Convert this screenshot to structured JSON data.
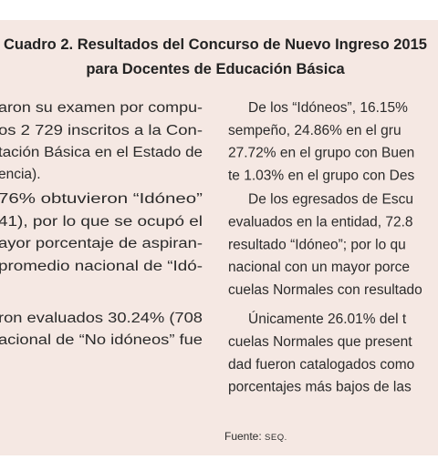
{
  "header": {
    "title_lines": [
      "Cuadro 2. Resultados del Concurso de Nuevo Ingreso 2015",
      "para Docentes de Educación Básica"
    ]
  },
  "left_column": {
    "lines": [
      "aron su examen por compu-",
      "os 2 729 inscritos a la Con-",
      "tación Básica en el Estado de",
      "encia).",
      "76% obtuvieron “Idóneo”",
      "41), por lo que se ocupó el",
      "ayor porcentaje de aspiran-",
      "promedio nacional de “Idó-",
      "ron evaluados 30.24% (708",
      "acional de “No idóneos” fue"
    ]
  },
  "right_column": {
    "paragraphs": [
      [
        "De los “Idóneos”, 16.15%",
        "sempeño, 24.86% en el gru",
        "27.72% en el grupo con Buen",
        "te 1.03% en el grupo con Des"
      ],
      [
        "De los egresados de Escu",
        "evaluados en la entidad, 72.8",
        "resultado “Idóneo”; por lo qu",
        "nacional con un mayor porce",
        "cuelas Normales con resultado"
      ],
      [
        "Únicamente 26.01% del t",
        "cuelas Normales que present",
        "dad fueron catalogados como",
        "porcentajes más bajos de las"
      ]
    ]
  },
  "source": {
    "label": "Fuente:",
    "text": "SEQ."
  }
}
